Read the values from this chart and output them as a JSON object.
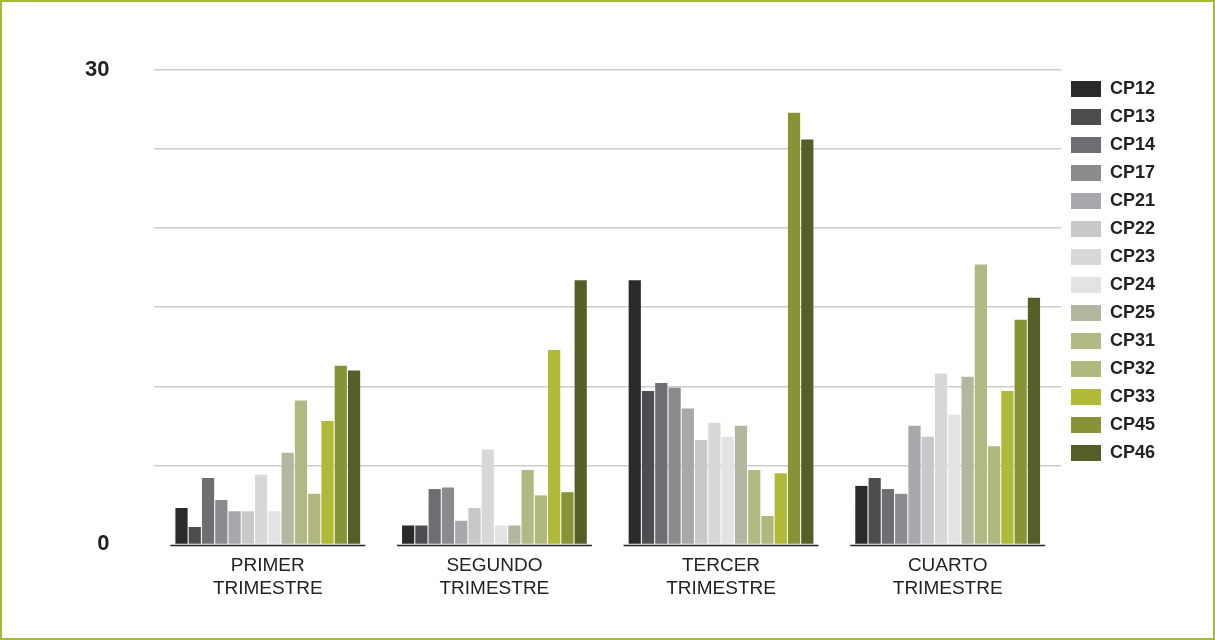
{
  "chart_data": {
    "type": "bar",
    "categories": [
      "PRIMER TRIMESTRE",
      "SEGUNDO TRIMESTRE",
      "TERCER TRIMESTRE",
      "CUARTO TRIMESTRE"
    ],
    "series": [
      {
        "name": "CP12",
        "color": "#2a2a2a",
        "values": [
          2.3,
          1.2,
          16.7,
          3.7
        ]
      },
      {
        "name": "CP13",
        "color": "#4d4d4f",
        "values": [
          1.1,
          1.2,
          9.7,
          4.2
        ]
      },
      {
        "name": "CP14",
        "color": "#6d6e71",
        "values": [
          4.2,
          3.5,
          10.2,
          3.5
        ]
      },
      {
        "name": "CP17",
        "color": "#8a8b8d",
        "values": [
          2.8,
          3.6,
          9.9,
          3.2
        ]
      },
      {
        "name": "CP21",
        "color": "#a7a8ab",
        "values": [
          2.1,
          1.5,
          8.6,
          7.5
        ]
      },
      {
        "name": "CP22",
        "color": "#c7c8ca",
        "values": [
          2.1,
          2.3,
          6.6,
          6.8
        ]
      },
      {
        "name": "CP23",
        "color": "#d7d8da",
        "values": [
          4.4,
          6.0,
          7.7,
          10.8
        ]
      },
      {
        "name": "CP24",
        "color": "#e2e3e4",
        "values": [
          2.1,
          1.2,
          6.8,
          8.2
        ]
      },
      {
        "name": "CP25",
        "color": "#b2b7a0",
        "values": [
          5.8,
          1.2,
          7.5,
          10.6
        ]
      },
      {
        "name": "CP31",
        "color": "#b1b982",
        "values": [
          9.1,
          4.7,
          4.7,
          17.7
        ]
      },
      {
        "name": "CP32",
        "color": "#b0b87e",
        "values": [
          3.2,
          3.1,
          1.8,
          6.2
        ]
      },
      {
        "name": "CP33",
        "color": "#aeba38",
        "values": [
          7.8,
          12.3,
          4.5,
          9.7
        ]
      },
      {
        "name": "CP45",
        "color": "#889335",
        "values": [
          11.3,
          3.3,
          27.3,
          14.2
        ]
      },
      {
        "name": "CP46",
        "color": "#545f27",
        "values": [
          11.0,
          16.7,
          25.6,
          15.6
        ]
      }
    ],
    "ylim": [
      0,
      30
    ],
    "yticks": [
      0,
      {
        "value": 5,
        "label": null
      },
      {
        "value": 10,
        "label": null
      },
      {
        "value": 15,
        "label": null
      },
      {
        "value": 20,
        "label": null
      },
      {
        "value": 25,
        "label": null
      },
      30
    ],
    "grid": "y",
    "legend": "right"
  }
}
